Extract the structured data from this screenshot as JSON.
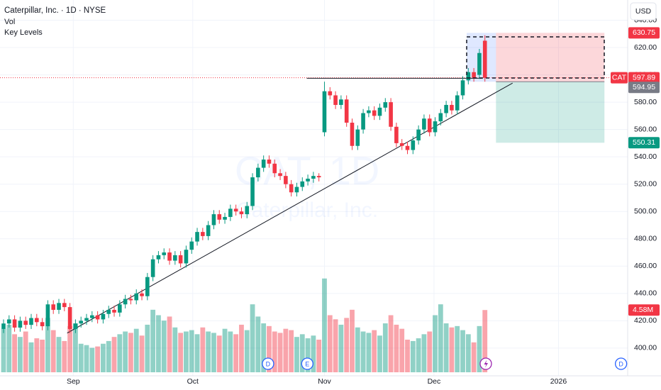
{
  "chart_data": {
    "type": "candlestick",
    "title": "Caterpillar, Inc. · 1D · NYSE",
    "indicators": [
      "Vol",
      "Key Levels"
    ],
    "currency": "USD",
    "symbol": "CAT",
    "watermark": [
      "CAT, 1D",
      "Caterpillar, Inc."
    ],
    "up_color": "#089981",
    "down_color": "#f23645",
    "open": [
      414,
      418,
      421,
      415,
      420,
      417,
      422,
      419,
      416,
      432,
      428,
      433,
      430,
      414,
      418,
      420,
      422,
      424,
      421,
      425,
      428,
      426,
      432,
      436,
      435,
      440,
      438,
      452,
      465,
      468,
      470,
      464,
      468,
      462,
      472,
      478,
      485,
      482,
      490,
      498,
      494,
      496,
      502,
      500,
      498,
      504,
      525,
      532,
      538,
      535,
      528,
      526,
      520,
      514,
      518,
      522,
      524,
      526,
      558,
      588,
      585,
      578,
      582,
      565,
      548,
      560,
      572,
      574,
      570,
      576,
      580,
      562,
      550,
      548,
      545,
      552,
      560,
      568,
      558,
      566,
      572,
      578,
      574,
      585,
      596,
      602,
      600,
      625
    ],
    "high": [
      421,
      424,
      424,
      423,
      423,
      425,
      425,
      422,
      435,
      435,
      436,
      436,
      433,
      421,
      423,
      425,
      427,
      427,
      428,
      431,
      431,
      435,
      439,
      439,
      443,
      443,
      455,
      468,
      471,
      473,
      473,
      471,
      471,
      475,
      481,
      488,
      488,
      493,
      501,
      501,
      499,
      505,
      505,
      503,
      507,
      528,
      535,
      541,
      541,
      538,
      531,
      529,
      523,
      521,
      525,
      527,
      529,
      528,
      595,
      591,
      588,
      585,
      585,
      568,
      563,
      575,
      577,
      577,
      579,
      583,
      583,
      565,
      553,
      551,
      555,
      563,
      571,
      571,
      569,
      575,
      581,
      581,
      588,
      599,
      605,
      605,
      619,
      629
    ],
    "low": [
      411,
      415,
      412,
      412,
      414,
      414,
      416,
      413,
      413,
      425,
      425,
      427,
      411,
      411,
      415,
      417,
      419,
      418,
      418,
      422,
      423,
      423,
      429,
      432,
      432,
      435,
      435,
      449,
      462,
      465,
      461,
      461,
      459,
      459,
      469,
      475,
      479,
      479,
      487,
      491,
      491,
      493,
      497,
      495,
      495,
      501,
      522,
      529,
      532,
      525,
      523,
      517,
      511,
      511,
      515,
      519,
      521,
      522,
      555,
      582,
      575,
      575,
      562,
      545,
      545,
      557,
      569,
      567,
      567,
      573,
      559,
      547,
      545,
      542,
      542,
      549,
      557,
      555,
      555,
      563,
      569,
      571,
      571,
      582,
      593,
      595,
      597,
      595
    ],
    "close": [
      418,
      421,
      415,
      420,
      417,
      422,
      419,
      416,
      432,
      428,
      433,
      430,
      414,
      418,
      420,
      422,
      424,
      421,
      425,
      428,
      426,
      432,
      436,
      435,
      440,
      438,
      452,
      465,
      468,
      470,
      464,
      468,
      462,
      472,
      478,
      485,
      482,
      490,
      498,
      494,
      496,
      502,
      500,
      498,
      504,
      525,
      532,
      538,
      535,
      528,
      526,
      520,
      514,
      518,
      522,
      524,
      526,
      525,
      588,
      585,
      578,
      582,
      565,
      548,
      560,
      572,
      574,
      570,
      576,
      580,
      562,
      550,
      548,
      545,
      552,
      560,
      568,
      558,
      566,
      572,
      578,
      574,
      585,
      596,
      602,
      598,
      616,
      597.89
    ],
    "volume": {
      "axis": "y2",
      "values": [
        3.2,
        3.5,
        2.8,
        2.6,
        3.0,
        2.2,
        2.5,
        2.4,
        4.0,
        3.1,
        2.6,
        2.3,
        3.4,
        3.6,
        2.1,
        2.0,
        1.8,
        1.9,
        2.1,
        2.3,
        2.6,
        2.8,
        3.0,
        2.9,
        3.2,
        2.7,
        3.5,
        4.6,
        4.2,
        3.8,
        4.1,
        3.3,
        2.9,
        3.0,
        3.1,
        2.8,
        3.3,
        3.0,
        2.9,
        2.7,
        3.2,
        3.0,
        2.8,
        3.5,
        3.1,
        5.0,
        4.1,
        3.6,
        3.4,
        3.0,
        2.9,
        3.2,
        3.1,
        2.6,
        2.8,
        2.5,
        2.7,
        2.4,
        6.9,
        4.2,
        3.9,
        3.5,
        4.0,
        4.6,
        3.3,
        3.0,
        2.9,
        3.1,
        2.7,
        3.6,
        4.2,
        3.5,
        3.2,
        2.4,
        2.3,
        2.5,
        2.8,
        3.0,
        4.2,
        5.0,
        3.6,
        3.3,
        3.4,
        3.1,
        2.8,
        2.2,
        3.4,
        4.58
      ],
      "value_labels": [
        null,
        null,
        null,
        null,
        null,
        null,
        null,
        null,
        null,
        null,
        null,
        null,
        null,
        null,
        null,
        null,
        null,
        null,
        null,
        null,
        null,
        null,
        null,
        null,
        null,
        null,
        null,
        null,
        null,
        null,
        null,
        null,
        null,
        null,
        null,
        null,
        null,
        null,
        null,
        null,
        null,
        null,
        null,
        null,
        null,
        null,
        null,
        null,
        null,
        null,
        null,
        null,
        null,
        null,
        null,
        null,
        null,
        null,
        null,
        null,
        null,
        null,
        null,
        null,
        null,
        null,
        null,
        null,
        null,
        null,
        null,
        null,
        null,
        null,
        null,
        null,
        null,
        null,
        null,
        null,
        null,
        null,
        null,
        null,
        null,
        null,
        null,
        "4.58M"
      ]
    },
    "xlim": [
      -0.64,
      112.8
    ],
    "xticks": [
      {
        "value": 12.6,
        "label": "Sep"
      },
      {
        "value": 34.2,
        "label": "Oct"
      },
      {
        "value": 58,
        "label": "Nov"
      },
      {
        "value": 77.8,
        "label": "Dec"
      },
      {
        "value": 100.3,
        "label": "2026"
      }
    ],
    "ylim": [
      379.7,
      654.8
    ],
    "yticks": [
      {
        "value": 400,
        "label": "400.00"
      },
      {
        "value": 420,
        "label": "420.00"
      },
      {
        "value": 440,
        "label": "440.00"
      },
      {
        "value": 460,
        "label": "460.00"
      },
      {
        "value": 480,
        "label": "480.00"
      },
      {
        "value": 500,
        "label": "500.00"
      },
      {
        "value": 520,
        "label": "520.00"
      },
      {
        "value": 540,
        "label": "540.00"
      },
      {
        "value": 560,
        "label": "560.00"
      },
      {
        "value": 580,
        "label": "580.00"
      },
      {
        "value": 600,
        "label": "600.00"
      },
      {
        "value": 620,
        "label": "620.00"
      },
      {
        "value": 640,
        "label": "640.00"
      }
    ],
    "y2lim": [
      0,
      12
    ],
    "grid": true,
    "key_level": {
      "value": 597.5,
      "x": [
        54.8,
        86.5
      ]
    },
    "trendline": {
      "x": [
        11.5,
        92
      ],
      "y": [
        411,
        594
      ]
    },
    "position": {
      "x": [
        89,
        108.6
      ],
      "entry": 594.95,
      "stop": 630.75,
      "target": 550.31
    },
    "events": [
      {
        "x": 47.8,
        "label": "D"
      },
      {
        "x": 54.9,
        "label": "E"
      },
      {
        "x": 111.6,
        "label": "D"
      }
    ]
  }
}
